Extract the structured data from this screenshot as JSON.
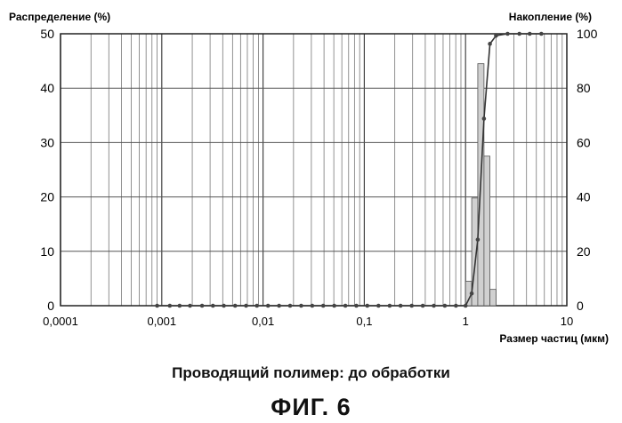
{
  "chart_data": {
    "type": "bar",
    "xscale": "log",
    "xlim": [
      0.0001,
      10
    ],
    "xticks": [
      "0,0001",
      "0,001",
      "0,01",
      "0,1",
      "1",
      "10"
    ],
    "xlabel": "Размер частиц (мкм)",
    "ylabel_left": "Распределение (%)",
    "ylabel_right": "Накопление (%)",
    "ylim_left": [
      0,
      50
    ],
    "ylim_right": [
      0,
      100
    ],
    "yticks_left": [
      "0",
      "10",
      "20",
      "30",
      "40",
      "50"
    ],
    "yticks_right": [
      "0",
      "20",
      "40",
      "60",
      "80",
      "100"
    ],
    "grid": true,
    "series": [
      {
        "type": "bar",
        "axis": "left",
        "bars": [
          {
            "x_from": 1.0,
            "x_to": 1.15,
            "y": 4.5
          },
          {
            "x_from": 1.15,
            "x_to": 1.32,
            "y": 19.8
          },
          {
            "x_from": 1.32,
            "x_to": 1.52,
            "y": 44.5
          },
          {
            "x_from": 1.52,
            "x_to": 1.74,
            "y": 27.5
          },
          {
            "x_from": 1.74,
            "x_to": 2.0,
            "y": 3.0
          }
        ]
      },
      {
        "type": "line",
        "axis": "right",
        "points": [
          [
            0.0009,
            0
          ],
          [
            0.0012,
            0
          ],
          [
            0.0015,
            0
          ],
          [
            0.0019,
            0
          ],
          [
            0.0025,
            0
          ],
          [
            0.0032,
            0
          ],
          [
            0.0041,
            0
          ],
          [
            0.0053,
            0
          ],
          [
            0.0068,
            0
          ],
          [
            0.0087,
            0
          ],
          [
            0.0112,
            0
          ],
          [
            0.0144,
            0
          ],
          [
            0.0185,
            0
          ],
          [
            0.0238,
            0
          ],
          [
            0.0306,
            0
          ],
          [
            0.0393,
            0
          ],
          [
            0.0505,
            0
          ],
          [
            0.065,
            0
          ],
          [
            0.0835,
            0
          ],
          [
            0.107,
            0
          ],
          [
            0.138,
            0
          ],
          [
            0.178,
            0
          ],
          [
            0.228,
            0
          ],
          [
            0.294,
            0
          ],
          [
            0.378,
            0
          ],
          [
            0.486,
            0
          ],
          [
            0.624,
            0
          ],
          [
            0.803,
            0
          ],
          [
            1.0,
            0
          ],
          [
            1.15,
            4.5
          ],
          [
            1.32,
            24.3
          ],
          [
            1.52,
            68.8
          ],
          [
            1.74,
            96.3
          ],
          [
            2.0,
            99.3
          ],
          [
            2.6,
            100
          ],
          [
            3.4,
            100
          ],
          [
            4.3,
            100
          ],
          [
            5.6,
            100
          ]
        ]
      }
    ]
  },
  "caption": "Проводящий полимер: до обработки",
  "figure_label": "ФИГ. 6"
}
